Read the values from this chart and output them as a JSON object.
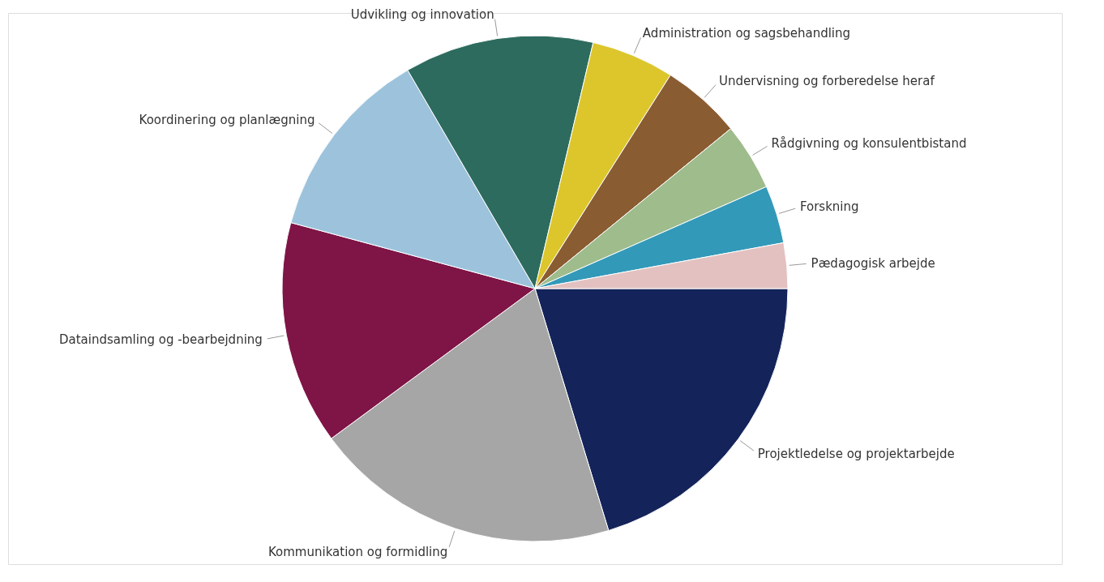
{
  "chart_data": {
    "type": "pie",
    "categories": [
      "Projektledelse og projektarbejde",
      "Kommunikation og formidling",
      "Dataindsamling og -bearbejdning",
      "Koordinering og planlægning",
      "Udvikling og innovation",
      "Administration og sagsbehandling",
      "Undervisning og forberedelse heraf",
      "Rådgivning og konsulentbistand",
      "Forskning",
      "Pædagogisk arbejde"
    ],
    "values": [
      20.3,
      19.6,
      14.3,
      12.4,
      12.1,
      5.3,
      5.1,
      4.3,
      3.7,
      2.9
    ],
    "colors": [
      "#14245a",
      "#a6a6a6",
      "#7f1446",
      "#9dc3dc",
      "#2e6b5f",
      "#dcc62c",
      "#8a5c32",
      "#9fbc8c",
      "#3399b9",
      "#e2c1c0"
    ],
    "legend": false
  }
}
